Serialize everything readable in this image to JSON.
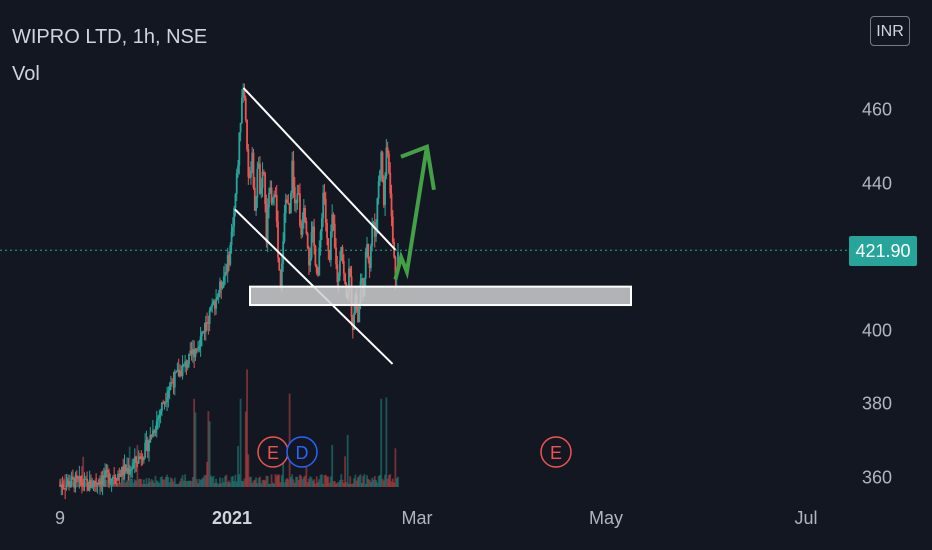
{
  "header": {
    "title": "WIPRO LTD, 1h, NSE",
    "indicator": "Vol"
  },
  "currency_button": "INR",
  "last_price": "421.90",
  "colors": {
    "background": "#131722",
    "up": "#26a69a",
    "down": "#ef5350",
    "arrow": "#43a047",
    "lines": "#ffffff",
    "earnings": "#ef5350",
    "dividend": "#2962ff"
  },
  "chart_data": {
    "type": "candlestick",
    "instrument": "WIPRO LTD",
    "interval": "1h",
    "exchange": "NSE",
    "y_ticks": [
      "460",
      "440",
      "420",
      "400",
      "380",
      "360"
    ],
    "y_tick_values": [
      460,
      440,
      420,
      400,
      380,
      360
    ],
    "x_ticks": [
      {
        "label": "9",
        "bold": false
      },
      {
        "label": "2021",
        "bold": true
      },
      {
        "label": "Mar",
        "bold": false
      },
      {
        "label": "May",
        "bold": false
      },
      {
        "label": "Jul",
        "bold": false
      }
    ],
    "ylim": [
      356,
      475
    ],
    "last_price": 421.9,
    "price_path": [
      [
        0,
        358
      ],
      [
        0.05,
        359
      ],
      [
        0.1,
        358
      ],
      [
        0.15,
        360
      ],
      [
        0.2,
        361
      ],
      [
        0.25,
        363
      ],
      [
        0.3,
        368
      ],
      [
        0.34,
        376
      ],
      [
        0.38,
        385
      ],
      [
        0.41,
        388
      ],
      [
        0.45,
        392
      ],
      [
        0.49,
        398
      ],
      [
        0.53,
        406
      ],
      [
        0.56,
        412
      ],
      [
        0.59,
        420
      ],
      [
        0.61,
        435
      ],
      [
        0.62,
        445
      ],
      [
        0.63,
        458
      ],
      [
        0.64,
        466
      ],
      [
        0.65,
        455
      ],
      [
        0.66,
        438
      ],
      [
        0.67,
        450
      ],
      [
        0.68,
        430
      ],
      [
        0.69,
        448
      ],
      [
        0.7,
        435
      ],
      [
        0.71,
        445
      ],
      [
        0.72,
        425
      ],
      [
        0.73,
        440
      ],
      [
        0.74,
        432
      ],
      [
        0.75,
        442
      ],
      [
        0.76,
        420
      ],
      [
        0.77,
        410
      ],
      [
        0.78,
        428
      ],
      [
        0.79,
        438
      ],
      [
        0.8,
        430
      ],
      [
        0.81,
        445
      ],
      [
        0.82,
        432
      ],
      [
        0.83,
        440
      ],
      [
        0.84,
        425
      ],
      [
        0.85,
        435
      ],
      [
        0.86,
        428
      ],
      [
        0.87,
        418
      ],
      [
        0.88,
        428
      ],
      [
        0.89,
        420
      ],
      [
        0.9,
        415
      ],
      [
        0.91,
        428
      ],
      [
        0.92,
        440
      ],
      [
        0.93,
        425
      ],
      [
        0.94,
        418
      ],
      [
        0.95,
        432
      ],
      [
        0.96,
        420
      ],
      [
        0.97,
        412
      ],
      [
        0.98,
        425
      ],
      [
        0.99,
        415
      ],
      [
        1.0,
        408
      ],
      [
        1.01,
        418
      ],
      [
        1.02,
        400
      ],
      [
        1.03,
        410
      ],
      [
        1.04,
        402
      ],
      [
        1.05,
        415
      ],
      [
        1.06,
        410
      ],
      [
        1.07,
        425
      ],
      [
        1.08,
        418
      ],
      [
        1.09,
        430
      ],
      [
        1.1,
        425
      ],
      [
        1.11,
        440
      ],
      [
        1.12,
        448
      ],
      [
        1.13,
        435
      ],
      [
        1.14,
        452
      ],
      [
        1.15,
        440
      ],
      [
        1.16,
        425
      ],
      [
        1.17,
        415
      ],
      [
        1.18,
        422
      ]
    ],
    "volume_spikes": [
      0.63,
      0.65,
      0.8,
      1.12,
      1.14,
      0.47,
      0.52
    ],
    "annotations": {
      "descending_channel": {
        "upper": [
          [
            0.64,
            466
          ],
          [
            1.17,
            422
          ]
        ],
        "lower": [
          [
            0.61,
            433
          ],
          [
            1.16,
            391
          ]
        ]
      },
      "support_zone": [
        407,
        412
      ],
      "forecast_arrow": [
        [
          1.17,
          414
        ],
        [
          1.19,
          420
        ],
        [
          1.21,
          416
        ],
        [
          1.28,
          450
        ]
      ],
      "events": [
        {
          "label": "E",
          "type": "earnings"
        },
        {
          "label": "D",
          "type": "dividend"
        },
        {
          "label": "E",
          "type": "earnings"
        }
      ]
    }
  }
}
